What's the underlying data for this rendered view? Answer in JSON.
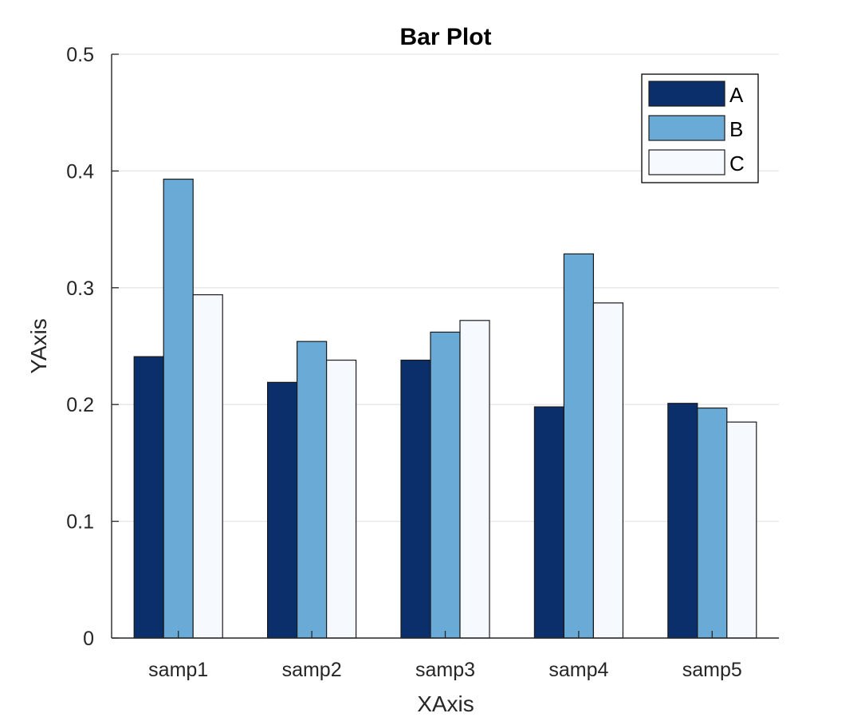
{
  "chart_data": {
    "type": "bar",
    "title": "Bar Plot",
    "xlabel": "XAxis",
    "ylabel": "YAxis",
    "categories": [
      "samp1",
      "samp2",
      "samp3",
      "samp4",
      "samp5"
    ],
    "series": [
      {
        "name": "A",
        "color": "#0b2f6b",
        "values": [
          0.241,
          0.219,
          0.238,
          0.198,
          0.201
        ]
      },
      {
        "name": "B",
        "color": "#69abd6",
        "values": [
          0.393,
          0.254,
          0.262,
          0.329,
          0.197
        ]
      },
      {
        "name": "C",
        "color": "#f6faff",
        "values": [
          0.294,
          0.238,
          0.272,
          0.287,
          0.185
        ]
      }
    ],
    "ylim": [
      0,
      0.5
    ],
    "yticks": [
      "0",
      "0.1",
      "0.2",
      "0.3",
      "0.4",
      "0.5"
    ],
    "grid": "y-major",
    "legend_position": "top-right"
  }
}
